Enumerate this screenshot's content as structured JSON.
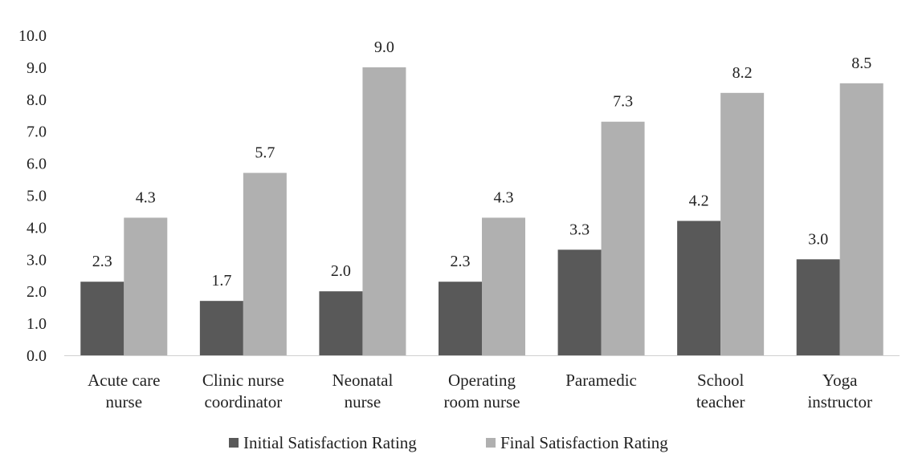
{
  "chart_data": {
    "type": "bar",
    "title": "",
    "xlabel": "",
    "ylabel": "",
    "ylim": [
      0,
      10
    ],
    "yticks": [
      "0.0",
      "1.0",
      "2.0",
      "3.0",
      "4.0",
      "5.0",
      "6.0",
      "7.0",
      "8.0",
      "9.0",
      "10.0"
    ],
    "grid": false,
    "legend_position": "bottom",
    "categories": [
      [
        "Acute care",
        "nurse"
      ],
      [
        "Clinic nurse",
        "coordinator"
      ],
      [
        "Neonatal",
        "nurse"
      ],
      [
        "Operating",
        "room nurse"
      ],
      [
        "Paramedic"
      ],
      [
        "School",
        "teacher"
      ],
      [
        "Yoga",
        "instructor"
      ]
    ],
    "series": [
      {
        "name": "Initial Satisfaction Rating",
        "color": "#595959",
        "values": [
          2.3,
          1.7,
          2.0,
          2.3,
          3.3,
          4.2,
          3.0
        ],
        "labels": [
          "2.3",
          "1.7",
          "2.0",
          "2.3",
          "3.3",
          "4.2",
          "3.0"
        ]
      },
      {
        "name": "Final Satisfaction Rating",
        "color": "#b0b0b0",
        "values": [
          4.3,
          5.7,
          9.0,
          4.3,
          7.3,
          8.2,
          8.5
        ],
        "labels": [
          "4.3",
          "5.7",
          "9.0",
          "4.3",
          "7.3",
          "8.2",
          "8.5"
        ]
      }
    ]
  }
}
